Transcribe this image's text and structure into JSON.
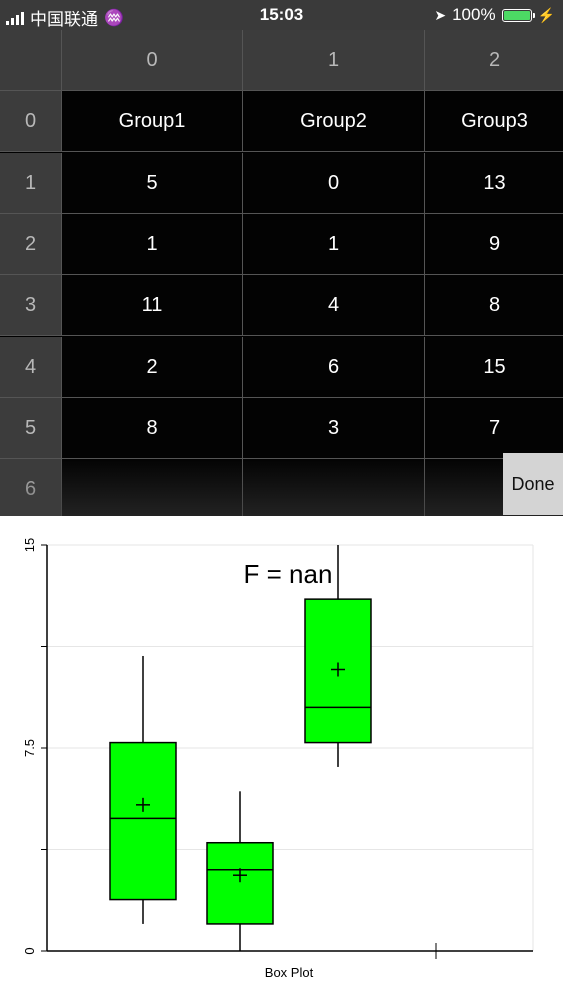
{
  "status_bar": {
    "carrier": "中国联通",
    "time": "15:03",
    "battery": "100%",
    "signal_icon": "signal-bars-icon",
    "location_icon": "location-arrow-icon",
    "charging_icon": "bolt-icon"
  },
  "sheet": {
    "column_headers": [
      "0",
      "1",
      "2"
    ],
    "row_headers": [
      "0",
      "1",
      "2",
      "3",
      "4",
      "5",
      "6"
    ],
    "rows": [
      [
        "Group1",
        "Group2",
        "Group3"
      ],
      [
        "5",
        "0",
        "13"
      ],
      [
        "1",
        "1",
        "9"
      ],
      [
        "11",
        "4",
        "8"
      ],
      [
        "2",
        "6",
        "15"
      ],
      [
        "8",
        "3",
        "7"
      ],
      [
        "",
        "",
        ""
      ]
    ],
    "done_label": "Done"
  },
  "chart_data": {
    "type": "box",
    "title": "F = nan",
    "xlabel": "Box Plot",
    "ylabel": "",
    "ylim": [
      0,
      15
    ],
    "y_tick_labels": [
      "0",
      "7.5",
      "15"
    ],
    "y_grid": [
      0,
      3.75,
      7.5,
      11.25,
      15
    ],
    "colors": {
      "box_fill": "#00ff00",
      "stroke": "#000000",
      "grid": "#e6e6e6"
    },
    "groups": [
      {
        "q1": 1.9,
        "median": 4.9,
        "q3": 7.7,
        "whisker_low": 1.0,
        "whisker_high": 10.9,
        "mean": 5.4
      },
      {
        "q1": 1.0,
        "median": 3.0,
        "q3": 4.0,
        "whisker_low": 0.0,
        "whisker_high": 5.9,
        "mean": 2.8
      },
      {
        "q1": 7.7,
        "median": 9.0,
        "q3": 13.0,
        "whisker_low": 6.8,
        "whisker_high": 15.0,
        "mean": 10.4
      }
    ]
  }
}
